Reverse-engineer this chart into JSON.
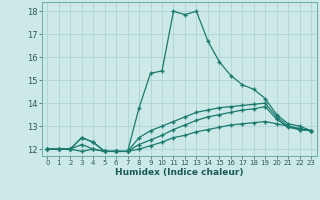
{
  "xlabel": "Humidex (Indice chaleur)",
  "background_color": "#cce9e8",
  "grid_color": "#aed4d3",
  "line_color": "#1a7a6e",
  "xlim": [
    -0.5,
    23.5
  ],
  "ylim": [
    11.7,
    18.4
  ],
  "xticks": [
    0,
    1,
    2,
    3,
    4,
    5,
    6,
    7,
    8,
    9,
    10,
    11,
    12,
    13,
    14,
    15,
    16,
    17,
    18,
    19,
    20,
    21,
    22,
    23
  ],
  "yticks": [
    12,
    13,
    14,
    15,
    16,
    17,
    18
  ],
  "series": [
    [
      12.0,
      12.0,
      12.0,
      12.5,
      12.3,
      11.9,
      11.9,
      11.9,
      13.8,
      15.3,
      15.4,
      18.0,
      17.85,
      18.0,
      16.7,
      15.8,
      15.2,
      14.8,
      14.6,
      14.2,
      13.5,
      13.1,
      13.0,
      12.8
    ],
    [
      12.0,
      12.0,
      12.0,
      12.5,
      12.3,
      11.9,
      11.9,
      11.9,
      12.5,
      12.8,
      13.0,
      13.2,
      13.4,
      13.6,
      13.7,
      13.8,
      13.85,
      13.9,
      13.95,
      14.0,
      13.4,
      13.0,
      12.9,
      12.8
    ],
    [
      12.0,
      12.0,
      12.0,
      11.9,
      12.0,
      11.9,
      11.9,
      11.9,
      12.0,
      12.15,
      12.3,
      12.5,
      12.6,
      12.75,
      12.85,
      12.95,
      13.05,
      13.1,
      13.15,
      13.2,
      13.1,
      13.0,
      12.85,
      12.8
    ],
    [
      12.0,
      12.0,
      12.0,
      12.2,
      12.0,
      11.9,
      11.9,
      11.9,
      12.2,
      12.4,
      12.6,
      12.85,
      13.05,
      13.25,
      13.4,
      13.5,
      13.6,
      13.7,
      13.75,
      13.85,
      13.3,
      12.95,
      12.85,
      12.8
    ]
  ]
}
